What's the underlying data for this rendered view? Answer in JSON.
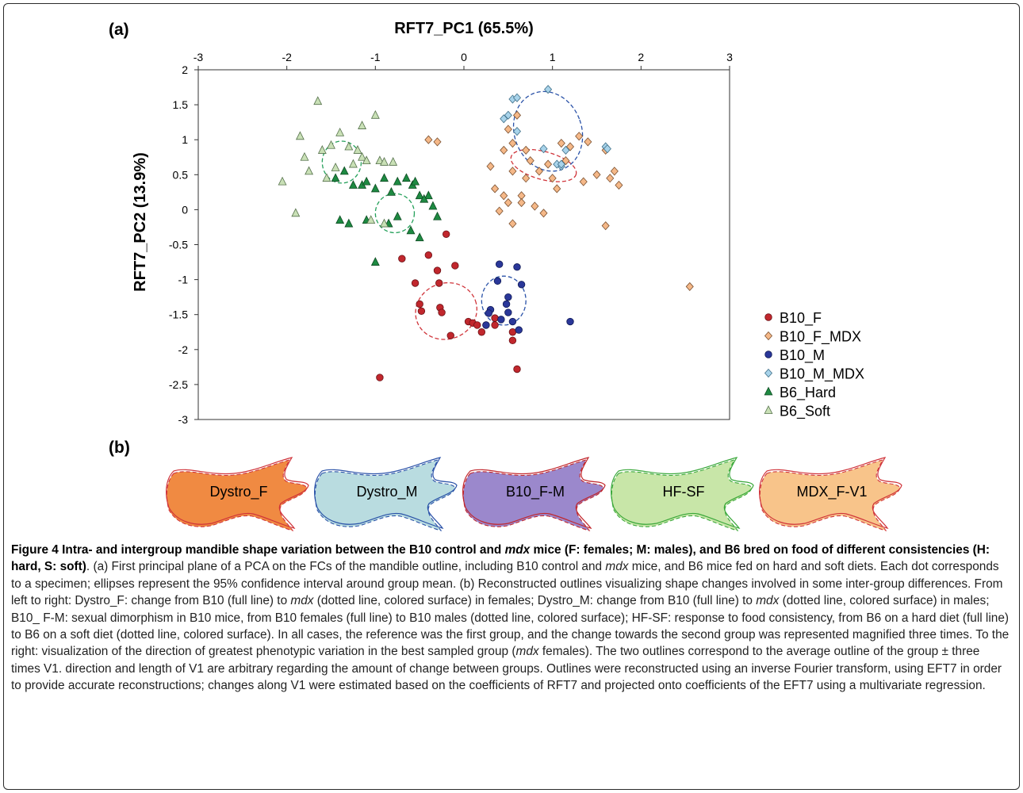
{
  "panel_labels": {
    "a": "(a)",
    "b": "(b)"
  },
  "chart_data": {
    "type": "scatter",
    "xlabel": "RFT7_PC1 (65.5%)",
    "ylabel": "RFT7_PC2  (13.9%)",
    "xlim": [
      -3,
      3
    ],
    "ylim": [
      -3,
      2
    ],
    "x_axis_position": "top",
    "x_ticks": [
      -3,
      -2,
      -1,
      0,
      1,
      2,
      3
    ],
    "y_ticks": [
      2,
      1.5,
      1,
      0.5,
      0,
      -0.5,
      -1,
      -1.5,
      -2,
      -2.5,
      -3
    ],
    "grid": false,
    "legend_position": "right",
    "series": [
      {
        "name": "B10_F",
        "marker": "circle",
        "fill": "#c1272d",
        "stroke": "#6b1015",
        "x": [
          -0.2,
          -0.7,
          -0.55,
          -0.5,
          -0.48,
          -0.3,
          -0.28,
          -0.27,
          -0.25,
          -0.15,
          -0.1,
          0.05,
          0.1,
          0.15,
          0.2,
          0.25,
          0.35,
          0.35,
          0.55,
          -0.95,
          -0.4,
          0.55,
          0.6
        ],
        "y": [
          -0.35,
          -0.7,
          -1.05,
          -1.35,
          -1.45,
          -0.87,
          -1.05,
          -1.4,
          -1.47,
          -1.8,
          -0.8,
          -1.6,
          -1.62,
          -1.65,
          -1.75,
          -1.65,
          -1.65,
          -1.55,
          -1.87,
          -2.4,
          -0.65,
          -1.75,
          -2.28
        ]
      },
      {
        "name": "B10_F_MDX",
        "marker": "diamond",
        "fill": "#f5b888",
        "stroke": "#7a5030",
        "x": [
          -0.4,
          -0.3,
          0.3,
          0.35,
          0.5,
          0.6,
          0.55,
          0.7,
          0.75,
          0.85,
          0.95,
          1.0,
          1.05,
          1.1,
          1.15,
          1.2,
          1.3,
          1.35,
          1.4,
          1.5,
          1.6,
          1.65,
          1.7,
          1.75,
          0.4,
          0.45,
          0.5,
          0.65,
          0.8,
          0.9,
          2.55,
          0.55,
          0.65,
          0.45,
          1.6,
          0.7,
          0.55
        ],
        "y": [
          1.0,
          0.97,
          0.62,
          0.3,
          1.15,
          1.35,
          0.95,
          0.85,
          0.7,
          0.55,
          0.65,
          0.45,
          0.3,
          0.95,
          0.7,
          0.9,
          1.05,
          0.4,
          0.97,
          0.5,
          0.85,
          0.45,
          0.55,
          0.35,
          -0.02,
          0.2,
          0.1,
          0.2,
          0.05,
          -0.05,
          -1.1,
          0.55,
          0.1,
          0.85,
          -0.23,
          0.45,
          -0.2
        ]
      },
      {
        "name": "B10_M",
        "marker": "circle",
        "fill": "#2a3799",
        "stroke": "#101a55",
        "x": [
          0.4,
          0.5,
          0.38,
          0.6,
          0.65,
          0.3,
          0.28,
          0.42,
          0.5,
          0.55,
          0.25,
          1.2,
          0.48,
          0.62
        ],
        "y": [
          -0.78,
          -1.25,
          -1.02,
          -0.82,
          -1.07,
          -1.43,
          -1.48,
          -1.57,
          -1.47,
          -1.6,
          -1.65,
          -1.6,
          -1.35,
          -1.72
        ]
      },
      {
        "name": "B10_M_MDX",
        "marker": "diamond",
        "fill": "#a8d3ea",
        "stroke": "#3f6f88",
        "x": [
          0.55,
          0.6,
          0.95,
          0.5,
          0.45,
          0.6,
          0.9,
          1.15,
          1.1,
          1.6,
          1.62,
          1.05,
          1.1
        ],
        "y": [
          1.58,
          1.6,
          1.72,
          1.35,
          1.3,
          1.12,
          0.87,
          0.85,
          0.62,
          0.9,
          0.87,
          0.65,
          0.65
        ]
      },
      {
        "name": "B6_Hard",
        "marker": "triangle-up",
        "fill": "#1e8a42",
        "stroke": "#0c4a20",
        "x": [
          -1.45,
          -1.35,
          -1.25,
          -1.15,
          -1.1,
          -1.0,
          -0.9,
          -0.82,
          -0.75,
          -0.65,
          -0.58,
          -0.5,
          -0.4,
          -0.35,
          -0.3,
          -0.55,
          -0.45,
          -0.6,
          -0.85,
          -1.0,
          -1.3,
          -1.4,
          -1.1,
          -0.75,
          -0.5
        ],
        "y": [
          0.45,
          0.55,
          0.35,
          0.35,
          0.4,
          0.3,
          0.45,
          0.25,
          0.4,
          0.45,
          0.35,
          0.2,
          0.2,
          0.05,
          -0.1,
          0.4,
          0.15,
          -0.3,
          -0.2,
          -0.75,
          -0.2,
          -0.15,
          -0.15,
          -0.1,
          -0.4
        ]
      },
      {
        "name": "B6_Soft",
        "marker": "triangle-up",
        "fill": "#c9e0b6",
        "stroke": "#54704a",
        "x": [
          -1.65,
          -1.5,
          -1.45,
          -1.4,
          -1.3,
          -1.25,
          -1.15,
          -1.1,
          -1.0,
          -0.95,
          -1.85,
          -2.05,
          -1.8,
          -1.75,
          -1.6,
          -1.55,
          -1.9,
          -1.2,
          -1.15,
          -0.9,
          -0.8,
          -0.9,
          -1.05
        ],
        "y": [
          1.55,
          0.92,
          0.6,
          1.1,
          0.9,
          0.65,
          0.75,
          0.7,
          1.35,
          0.7,
          1.05,
          0.4,
          0.75,
          0.55,
          0.85,
          0.45,
          -0.05,
          0.85,
          1.2,
          0.68,
          0.68,
          -0.2,
          -0.15
        ]
      }
    ],
    "ellipses": [
      {
        "series": "B10_F",
        "cx": -0.2,
        "cy": -1.45,
        "rx": 0.35,
        "ry": 0.4,
        "rotate": -20,
        "color": "#d0343a"
      },
      {
        "series": "B10_F_MDX",
        "cx": 0.9,
        "cy": 0.63,
        "rx": 0.38,
        "ry": 0.2,
        "rotate": 15,
        "color": "#d0343a"
      },
      {
        "series": "B10_M",
        "cx": 0.45,
        "cy": -1.3,
        "rx": 0.25,
        "ry": 0.35,
        "rotate": 0,
        "color": "#2a52a8"
      },
      {
        "series": "B10_M_MDX",
        "cx": 0.95,
        "cy": 1.12,
        "rx": 0.38,
        "ry": 0.58,
        "rotate": -20,
        "color": "#2a52a8"
      },
      {
        "series": "B6_Hard",
        "cx": -0.78,
        "cy": -0.05,
        "rx": 0.22,
        "ry": 0.28,
        "rotate": 0,
        "color": "#24a05a"
      },
      {
        "series": "B6_Soft",
        "cx": -1.38,
        "cy": 0.68,
        "rx": 0.22,
        "ry": 0.3,
        "rotate": 0,
        "color": "#24a05a"
      }
    ]
  },
  "shape_outlines": [
    {
      "label": "Dystro_F",
      "fill": "#f08a42",
      "line": "#d0343a"
    },
    {
      "label": "Dystro_M",
      "fill": "#b9dce0",
      "line": "#2a52a8"
    },
    {
      "label": "B10_F-M",
      "fill": "#9b88cc",
      "line": "#c1272d"
    },
    {
      "label": "HF-SF",
      "fill": "#c8e6a8",
      "line": "#3aa83a"
    },
    {
      "label": "MDX_F-V1",
      "fill": "#f8c48a",
      "line": "#d0343a"
    }
  ],
  "caption": {
    "title_parts": [
      "Figure 4 Intra- and intergroup mandible shape variation between the B10 control and ",
      "mdx",
      " mice (F: females; M: males), and B6 bred on food of different consistencies (H: hard, S: soft)"
    ],
    "body_parts": [
      ". (a) First principal plane of a PCA on the FCs of the mandible outline, including B10 control and ",
      "mdx",
      " mice, and B6 mice fed on hard and soft diets. Each dot corresponds to a specimen; ellipses represent the 95% confidence interval around group mean. (b) Reconstructed outlines visualizing shape changes involved in some inter-group differences. From left to right: Dystro_F: change from B10 (full line) to ",
      "mdx",
      " (dotted line, colored surface) in females; Dystro_M: change from B10 (full line) to ",
      "mdx",
      " (dotted line, colored surface) in males; B10_ F-M: sexual dimorphism in B10 mice, from B10 females (full line) to B10 males (dotted line, colored surface); HF-SF: response to food consistency, from B6 on a hard diet (full line) to B6 on a soft diet (dotted line, colored surface). In all cases, the reference was the first group, and the change towards the second group was represented magnified three times. To the right: visualization of the direction of greatest phenotypic variation in the best sampled group (",
      "mdx",
      " females). The two outlines correspond to the average outline of the group ± three times V1. direction and length of V1 are arbitrary regarding the amount of change between groups. Outlines were reconstructed using an inverse Fourier transform, using EFT7 in order to provide accurate reconstructions; changes along V1 were estimated based on the coefficients of RFT7 and projected onto coefficients of the EFT7 using a multivariate regression."
    ]
  }
}
